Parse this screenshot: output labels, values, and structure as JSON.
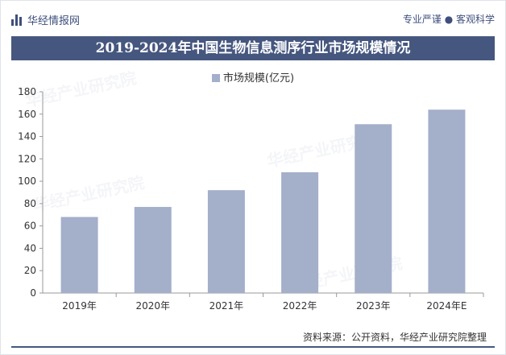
{
  "header": {
    "brand": "华经情报网",
    "tagline": "专业严谨 ● 客观科学"
  },
  "title": "2019-2024年中国生物信息测序行业市场规模情况",
  "watermark": "华经产业研究院",
  "source": "资料来源：公开资料，华经产业研究院整理",
  "colors": {
    "bar": "#a4afca",
    "header": "#46577f",
    "axis": "#999999"
  },
  "chart_data": {
    "type": "bar",
    "title": "2019-2024年中国生物信息测序行业市场规模情况",
    "categories": [
      "2019年",
      "2020年",
      "2021年",
      "2022年",
      "2023年",
      "2024年E"
    ],
    "series": [
      {
        "name": "市场规模(亿元)",
        "values": [
          68,
          77,
          92,
          108,
          151,
          164
        ]
      }
    ],
    "ylim": [
      0,
      180
    ],
    "yticks": [
      0,
      20,
      40,
      60,
      80,
      100,
      120,
      140,
      160,
      180
    ],
    "xlabel": "",
    "ylabel": "",
    "legend": "top"
  }
}
